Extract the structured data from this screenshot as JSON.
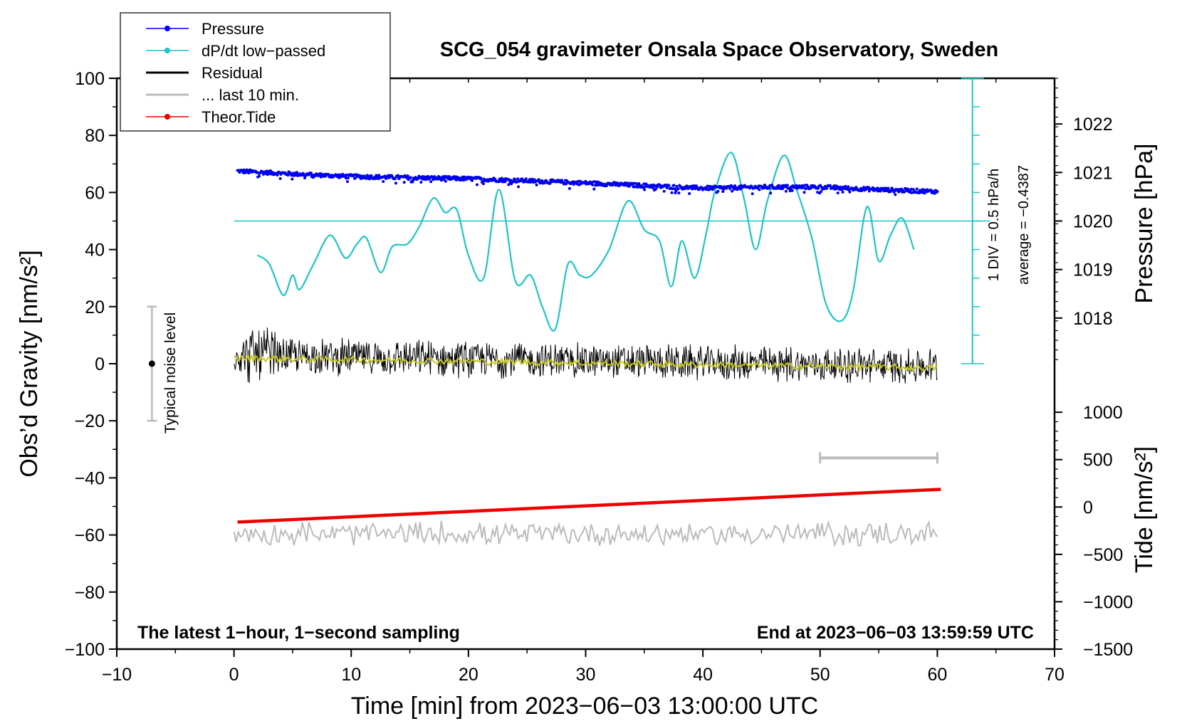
{
  "chart_data": {
    "type": "line",
    "title": "SCG_054 gravimeter Onsala Space Observatory, Sweden",
    "xlabel": "Time [min] from 2023−06−03 13:00:00 UTC",
    "ylabel_left": "Obs’d Gravity [nm/s²]",
    "ylabel_pressure": "Pressure [hPa]",
    "ylabel_tide": "Tide [nm/s²]",
    "xlim": [
      -10,
      70
    ],
    "ylim": [
      -100,
      100
    ],
    "x_ticks": [
      "−10",
      "0",
      "10",
      "20",
      "30",
      "40",
      "50",
      "60",
      "70"
    ],
    "y_ticks": [
      "100",
      "80",
      "60",
      "40",
      "20",
      "0",
      "−20",
      "−40",
      "−60",
      "−80",
      "−100"
    ],
    "pressure_ticks": [
      "1022",
      "1021",
      "1020",
      "1019",
      "1018"
    ],
    "tide_ticks": [
      "1000",
      "500",
      "0",
      "−500",
      "−1000",
      "−1500"
    ],
    "legend": [
      {
        "label": "Pressure",
        "color": "#0000ee",
        "marker": true
      },
      {
        "label": "dP/dt low−passed",
        "color": "#1fc4c4",
        "marker": true
      },
      {
        "label": "Residual",
        "color": "#000000",
        "marker": false
      },
      {
        "label": "... last 10 min.",
        "color": "#bbbbbb",
        "marker": false
      },
      {
        "label": "Theor.Tide",
        "color": "#ee0000",
        "marker": true
      }
    ],
    "annotations": {
      "noise_label": "Typical noise level",
      "scale_div": "1 DIV = 0.5 hPa/h",
      "scale_avg": "average = −0.4387",
      "footer_left": "The latest 1−hour, 1−second sampling",
      "footer_right": "End at 2023−06−03 13:59:59 UTC"
    },
    "noise_bar": {
      "x": -7,
      "center": 0,
      "low": -20,
      "high": 20
    },
    "dpdt_zero_level": 50,
    "last10_bracket": {
      "x_start": 50,
      "x_end": 60,
      "y": -33
    },
    "series": [
      {
        "name": "Pressure",
        "axis": "gravity",
        "color": "#0000ee",
        "x": [
          0.3,
          5,
          10,
          15,
          20,
          25,
          30,
          35,
          40,
          45,
          50,
          55,
          60
        ],
        "values": [
          67.5,
          66.5,
          65.6,
          65.2,
          64.8,
          64.1,
          63.3,
          62.4,
          61.5,
          61.9,
          61.9,
          61.0,
          60.3
        ]
      },
      {
        "name": "dP/dt low−passed",
        "axis": "gravity",
        "color": "#1fc4c4",
        "x": [
          2.0,
          3.0,
          4.2,
          5.0,
          5.6,
          6.8,
          8.2,
          9.5,
          10.5,
          11.3,
          12.5,
          13.5,
          14.8,
          15.8,
          17.0,
          18.0,
          19.0,
          20.0,
          21.3,
          22.6,
          24.0,
          25.3,
          26.3,
          27.4,
          28.5,
          29.5,
          30.5,
          32.0,
          33.6,
          35.0,
          36.3,
          37.3,
          38.2,
          39.3,
          40.3,
          41.0,
          42.4,
          43.5,
          44.5,
          45.5,
          46.9,
          48.0,
          49.3,
          50.5,
          51.8,
          52.8,
          54.0,
          55.0,
          56.0,
          57.0,
          58.0
        ],
        "values": [
          38,
          35,
          24,
          31,
          26,
          35,
          45,
          37,
          42,
          44,
          32,
          41,
          42,
          48,
          58,
          53,
          54,
          38,
          30,
          61,
          29,
          31,
          20,
          12,
          35,
          31,
          31,
          40,
          57,
          47,
          43,
          27,
          43,
          30,
          46,
          60,
          74,
          58,
          40,
          57,
          73,
          61,
          44,
          21,
          15,
          25,
          55,
          36,
          45,
          51,
          40
        ]
      },
      {
        "name": "Residual",
        "axis": "gravity",
        "color": "#000000",
        "x": [
          0,
          60
        ],
        "values": [
          3,
          -1
        ],
        "noise_amplitude": 7
      },
      {
        "name": "Residual smoothed",
        "axis": "gravity",
        "color": "#c8c820",
        "x": [
          0,
          60
        ],
        "values": [
          2,
          -1.5
        ]
      },
      {
        "name": "Theor.Tide",
        "axis": "gravity",
        "color": "#ee0000",
        "x": [
          0.3,
          60.3
        ],
        "values": [
          -55.5,
          -44
        ]
      },
      {
        "name": "... last 10 min.",
        "axis": "gravity",
        "color": "#bbbbbb",
        "x": [
          0,
          60
        ],
        "values": [
          -60,
          -60
        ],
        "noise_amplitude": 5
      }
    ]
  }
}
